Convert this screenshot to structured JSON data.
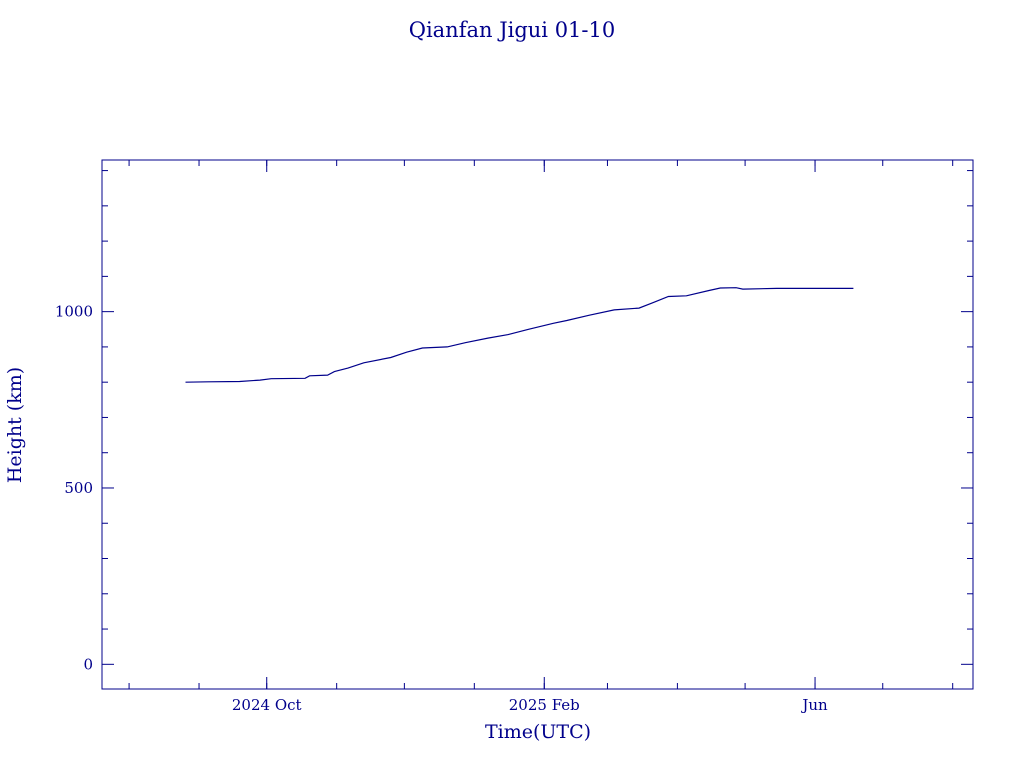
{
  "chart_data": {
    "type": "line",
    "title": "Qianfan Jigui 01-10",
    "xlabel": "Time(UTC)",
    "ylabel": "Height (km)",
    "x_range": [
      "2024-07-20",
      "2025-08-10"
    ],
    "ylim": [
      -70,
      1430
    ],
    "y_ticks": [
      0,
      500,
      1000
    ],
    "x_ticks": [
      {
        "date": "2024-10-01",
        "label": "2024 Oct"
      },
      {
        "date": "2025-02-01",
        "label": "2025 Feb"
      },
      {
        "date": "2025-06-01",
        "label": "Jun"
      }
    ],
    "grid": false,
    "color": "#00008b",
    "series": [
      {
        "points": [
          [
            "2024-08-26",
            800
          ],
          [
            "2024-09-05",
            801
          ],
          [
            "2024-09-19",
            802
          ],
          [
            "2024-09-28",
            806
          ],
          [
            "2024-10-03",
            810
          ],
          [
            "2024-10-18",
            811
          ],
          [
            "2024-10-20",
            818
          ],
          [
            "2024-10-28",
            820
          ],
          [
            "2024-10-31",
            830
          ],
          [
            "2024-11-06",
            840
          ],
          [
            "2024-11-13",
            855
          ],
          [
            "2024-11-25",
            870
          ],
          [
            "2024-12-02",
            885
          ],
          [
            "2024-12-09",
            897
          ],
          [
            "2024-12-20",
            900
          ],
          [
            "2024-12-28",
            912
          ],
          [
            "2025-01-07",
            925
          ],
          [
            "2025-01-16",
            935
          ],
          [
            "2025-01-25",
            950
          ],
          [
            "2025-02-05",
            967
          ],
          [
            "2025-02-11",
            975
          ],
          [
            "2025-02-21",
            990
          ],
          [
            "2025-03-04",
            1005
          ],
          [
            "2025-03-15",
            1010
          ],
          [
            "2025-03-21",
            1025
          ],
          [
            "2025-03-28",
            1043
          ],
          [
            "2025-04-05",
            1045
          ],
          [
            "2025-04-15",
            1060
          ],
          [
            "2025-04-20",
            1067
          ],
          [
            "2025-04-27",
            1068
          ],
          [
            "2025-04-30",
            1064
          ],
          [
            "2025-05-15",
            1066
          ],
          [
            "2025-06-01",
            1066
          ],
          [
            "2025-06-18",
            1066
          ]
        ]
      }
    ]
  }
}
